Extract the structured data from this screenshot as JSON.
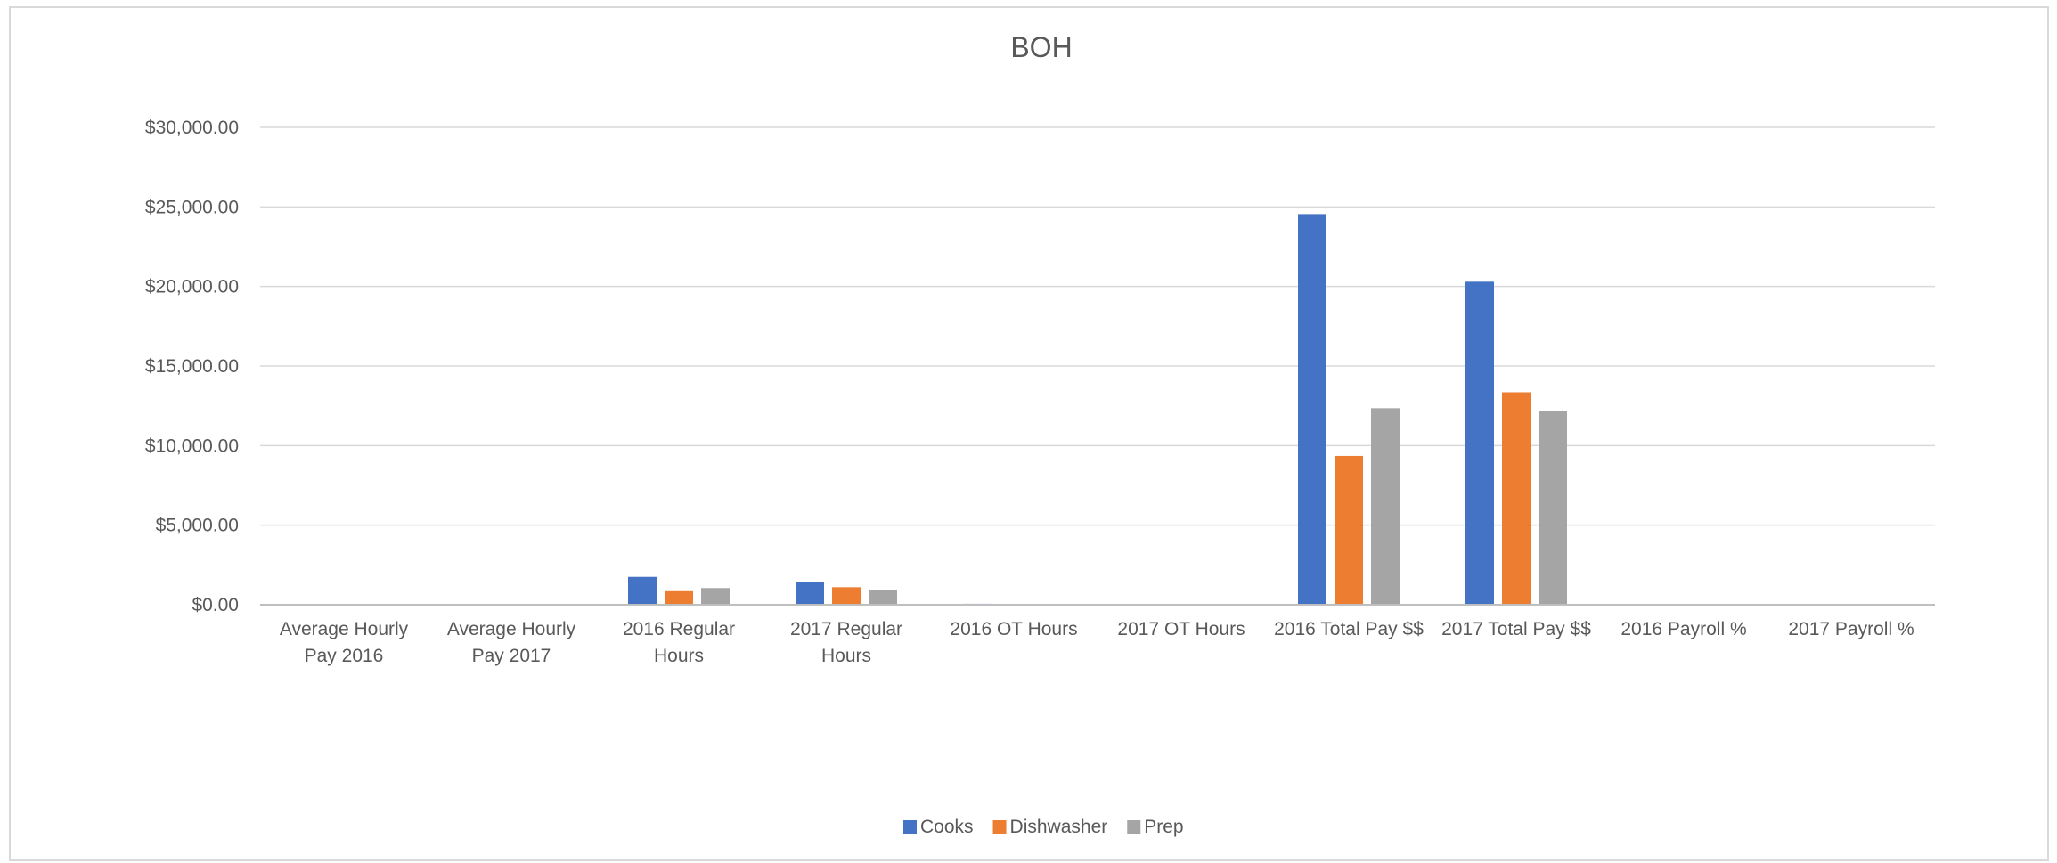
{
  "chart_data": {
    "type": "bar",
    "title": "BOH",
    "xlabel": "",
    "ylabel": "",
    "ylim": [
      0,
      30000
    ],
    "y_ticks": [
      0,
      5000,
      10000,
      15000,
      20000,
      25000,
      30000
    ],
    "y_tick_labels": [
      "$0.00",
      "$5,000.00",
      "$10,000.00",
      "$15,000.00",
      "$20,000.00",
      "$25,000.00",
      "$30,000.00"
    ],
    "grid": true,
    "legend_position": "bottom",
    "categories": [
      [
        "Average Hourly",
        "Pay 2016"
      ],
      [
        "Average Hourly",
        "Pay 2017"
      ],
      [
        "2016 Regular",
        "Hours"
      ],
      [
        "2017 Regular",
        "Hours"
      ],
      [
        "2016 OT Hours"
      ],
      [
        "2017 OT Hours"
      ],
      [
        "2016 Total Pay $$"
      ],
      [
        "2017 Total Pay $$"
      ],
      [
        "2016 Payroll %"
      ],
      [
        "2017 Payroll %"
      ]
    ],
    "series": [
      {
        "name": "Cooks",
        "color": "#4472c4",
        "values": [
          14,
          15,
          1750,
          1400,
          60,
          10,
          24550,
          20300,
          0.3,
          0.3
        ]
      },
      {
        "name": "Dishwasher",
        "color": "#ed7d31",
        "values": [
          10,
          11,
          850,
          1100,
          10,
          5,
          9350,
          13350,
          0.2,
          0.2
        ]
      },
      {
        "name": "Prep",
        "color": "#a5a5a5",
        "values": [
          11,
          12,
          1050,
          950,
          10,
          5,
          12350,
          12200,
          0.2,
          0.2
        ]
      }
    ]
  }
}
